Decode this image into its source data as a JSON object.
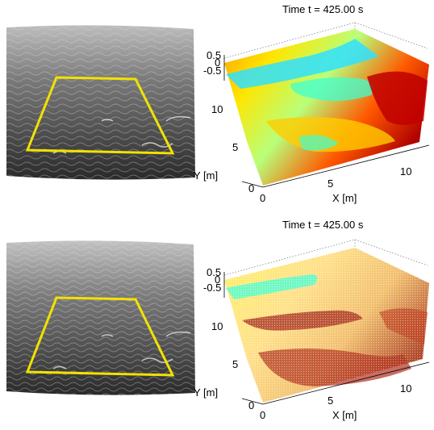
{
  "panels": [
    {
      "title": "Time  t = 425.00 s",
      "z_ticks": [
        "0.5",
        "0",
        "-0.5"
      ],
      "y_ticks": [
        "10",
        "5",
        "0"
      ],
      "x_ticks": [
        "0",
        "5",
        "10"
      ],
      "y_label": "Y [m]",
      "x_label": "X [m]",
      "surface_style": "filled",
      "roi_color": "#f2e200"
    },
    {
      "title": "Time  t = 425.00 s",
      "z_ticks": [
        "0.5",
        "0",
        "-0.5"
      ],
      "y_ticks": [
        "10",
        "5",
        "0"
      ],
      "x_ticks": [
        "0",
        "5",
        "10"
      ],
      "y_label": "Y [m]",
      "x_label": "X [m]",
      "surface_style": "points",
      "roi_color": "#f2e200"
    }
  ],
  "colormap": [
    "#00bfff",
    "#7fffd4",
    "#ffff00",
    "#ff8c00",
    "#ff2000",
    "#8b0000"
  ]
}
